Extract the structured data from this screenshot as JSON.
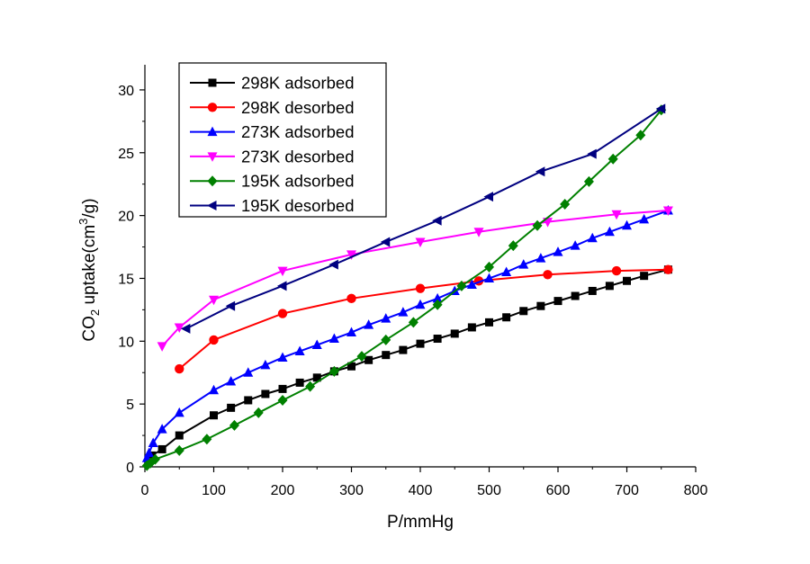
{
  "chart_data": {
    "type": "line",
    "xlabel": "P/mmHg",
    "ylabel_prefix": "CO",
    "ylabel_sub": "2",
    "ylabel_mid": " uptake(cm",
    "ylabel_sup": "3",
    "ylabel_suffix": "/g)",
    "xlim": [
      0,
      800
    ],
    "ylim": [
      0,
      32
    ],
    "xticks": [
      0,
      100,
      200,
      300,
      400,
      500,
      600,
      700,
      800
    ],
    "yticks": [
      0,
      5,
      10,
      15,
      20,
      25,
      30
    ],
    "legend_position": "top-left",
    "series": [
      {
        "name": "298K adsorbed",
        "color": "#000000",
        "marker": "square",
        "x": [
          5,
          10,
          25,
          50,
          100,
          125,
          150,
          175,
          200,
          225,
          250,
          275,
          300,
          325,
          350,
          375,
          400,
          425,
          450,
          475,
          500,
          525,
          550,
          575,
          600,
          625,
          650,
          675,
          700,
          725,
          760
        ],
        "y": [
          0.3,
          0.9,
          1.4,
          2.5,
          4.1,
          4.7,
          5.3,
          5.8,
          6.2,
          6.7,
          7.1,
          7.6,
          8.0,
          8.5,
          8.9,
          9.3,
          9.8,
          10.2,
          10.6,
          11.1,
          11.5,
          11.9,
          12.4,
          12.8,
          13.2,
          13.6,
          14.0,
          14.4,
          14.8,
          15.2,
          15.7
        ]
      },
      {
        "name": "298K desorbed",
        "color": "#ff0000",
        "marker": "circle",
        "x": [
          50,
          100,
          200,
          300,
          400,
          485,
          585,
          685,
          760
        ],
        "y": [
          7.8,
          10.1,
          12.2,
          13.4,
          14.2,
          14.8,
          15.3,
          15.6,
          15.7
        ]
      },
      {
        "name": "273K adsorbed",
        "color": "#0000ff",
        "marker": "triangle-up",
        "x": [
          3,
          6,
          12,
          25,
          50,
          100,
          125,
          150,
          175,
          200,
          225,
          250,
          275,
          300,
          325,
          350,
          375,
          400,
          425,
          450,
          475,
          500,
          525,
          550,
          575,
          600,
          625,
          650,
          675,
          700,
          725,
          760
        ],
        "y": [
          0.7,
          1.1,
          1.9,
          3.0,
          4.3,
          6.1,
          6.8,
          7.5,
          8.1,
          8.7,
          9.2,
          9.7,
          10.2,
          10.7,
          11.3,
          11.8,
          12.3,
          12.9,
          13.4,
          14.0,
          14.5,
          15.0,
          15.5,
          16.1,
          16.6,
          17.1,
          17.6,
          18.2,
          18.7,
          19.2,
          19.7,
          20.4
        ]
      },
      {
        "name": "273K desorbed",
        "color": "#ff00ff",
        "marker": "triangle-down",
        "x": [
          25,
          50,
          100,
          200,
          300,
          400,
          485,
          585,
          685,
          760
        ],
        "y": [
          9.6,
          11.1,
          13.3,
          15.6,
          16.9,
          17.9,
          18.7,
          19.5,
          20.1,
          20.4
        ]
      },
      {
        "name": "195K adsorbed",
        "color": "#008000",
        "marker": "diamond",
        "x": [
          3,
          8,
          15,
          50,
          90,
          130,
          165,
          200,
          240,
          275,
          315,
          350,
          390,
          425,
          460,
          500,
          535,
          570,
          610,
          645,
          680,
          720,
          750
        ],
        "y": [
          0.1,
          0.3,
          0.6,
          1.3,
          2.2,
          3.3,
          4.3,
          5.3,
          6.4,
          7.6,
          8.8,
          10.1,
          11.5,
          12.9,
          14.4,
          15.9,
          17.6,
          19.2,
          20.9,
          22.7,
          24.5,
          26.4,
          28.4
        ]
      },
      {
        "name": "195K desorbed",
        "color": "#000080",
        "marker": "triangle-left",
        "x": [
          60,
          125,
          200,
          275,
          350,
          425,
          500,
          575,
          650,
          750
        ],
        "y": [
          11.0,
          12.8,
          14.4,
          16.1,
          17.9,
          19.6,
          21.5,
          23.5,
          24.9,
          28.5
        ]
      }
    ]
  }
}
